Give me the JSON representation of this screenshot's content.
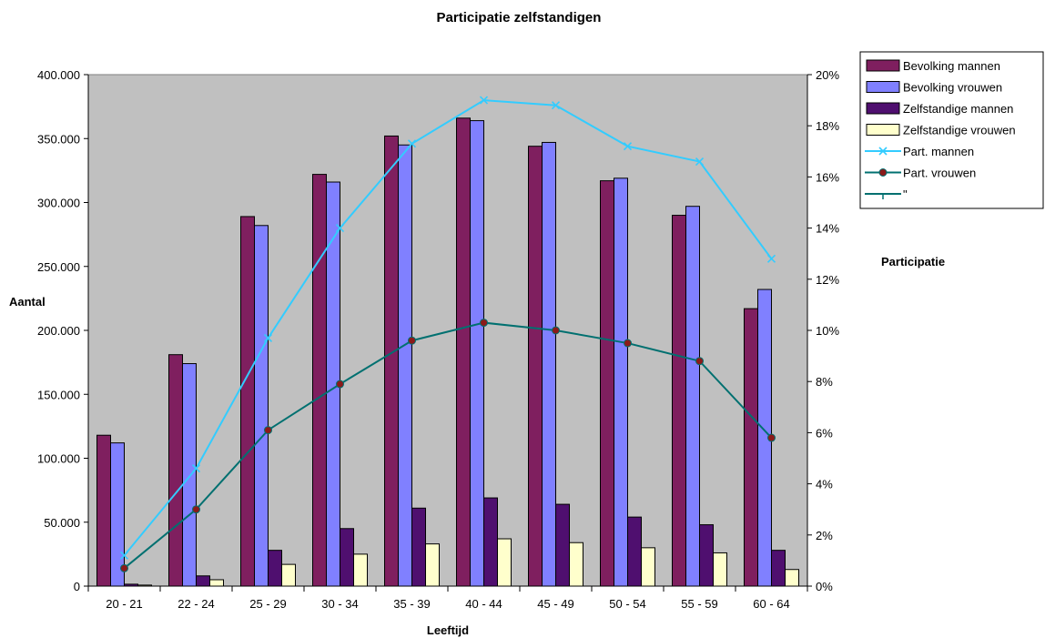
{
  "chart_data": {
    "type": "bar",
    "title": "Participatie zelfstandigen",
    "xlabel": "Leeftijd",
    "ylabel": "Aantal",
    "y2label": "Participatie",
    "categories": [
      "20 - 21",
      "22 - 24",
      "25 - 29",
      "30 - 34",
      "35 - 39",
      "40 - 44",
      "45 - 49",
      "50 - 54",
      "55 - 59",
      "60 - 64"
    ],
    "ylim": [
      0,
      400000
    ],
    "y_ticks": [
      "0",
      "50.000",
      "100.000",
      "150.000",
      "200.000",
      "250.000",
      "300.000",
      "350.000",
      "400.000"
    ],
    "y2lim": [
      0,
      20
    ],
    "y2_ticks": [
      "0%",
      "2%",
      "4%",
      "6%",
      "8%",
      "10%",
      "12%",
      "14%",
      "16%",
      "18%",
      "20%"
    ],
    "grid": false,
    "plot_background": "#c0c0c0",
    "legend_position": "right",
    "series": [
      {
        "name": "Bevolking mannen",
        "kind": "bar",
        "axis": "left",
        "color": "#7f1f5f",
        "values": [
          118000,
          181000,
          289000,
          322000,
          352000,
          366000,
          344000,
          317000,
          290000,
          217000
        ]
      },
      {
        "name": "Bevolking vrouwen",
        "kind": "bar",
        "axis": "left",
        "color": "#8080ff",
        "values": [
          112000,
          174000,
          282000,
          316000,
          345000,
          364000,
          347000,
          319000,
          297000,
          232000
        ]
      },
      {
        "name": "Zelfstandige mannen",
        "kind": "bar",
        "axis": "left",
        "color": "#4f0f6f",
        "values": [
          1500,
          8000,
          28000,
          45000,
          61000,
          69000,
          64000,
          54000,
          48000,
          28000
        ]
      },
      {
        "name": "Zelfstandige vrouwen",
        "kind": "bar",
        "axis": "left",
        "color": "#ffffcc",
        "values": [
          800,
          5000,
          17000,
          25000,
          33000,
          37000,
          34000,
          30000,
          26000,
          13000
        ]
      },
      {
        "name": "Part. mannen",
        "kind": "line",
        "axis": "right",
        "color": "#33ccff",
        "marker": "x",
        "values": [
          1.2,
          4.6,
          9.7,
          14.0,
          17.3,
          19.0,
          18.8,
          17.2,
          16.6,
          12.8
        ]
      },
      {
        "name": "Part. vrouwen",
        "kind": "line",
        "axis": "right",
        "color": "#007070",
        "marker": "dot",
        "marker_color": "#8b1a1a",
        "values": [
          0.7,
          3.0,
          6.1,
          7.9,
          9.6,
          10.3,
          10.0,
          9.5,
          8.8,
          5.8
        ]
      },
      {
        "name": "\"",
        "kind": "legend-only",
        "color": "#007070",
        "marker": "tick"
      }
    ]
  }
}
